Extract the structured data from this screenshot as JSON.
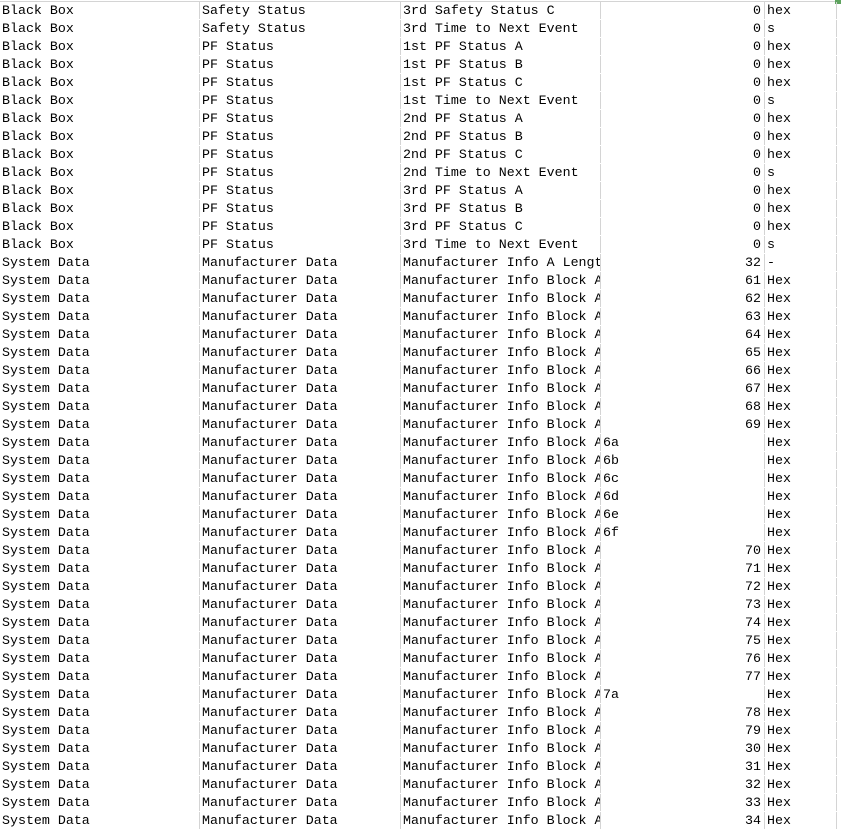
{
  "sheet": {
    "rows": [
      [
        "Black Box",
        "Safety Status",
        "3rd Safety Status C",
        "0",
        "hex"
      ],
      [
        "Black Box",
        "Safety Status",
        "3rd Time to Next Event",
        "0",
        "s"
      ],
      [
        "Black Box",
        "PF Status",
        "1st PF Status A",
        "0",
        "hex"
      ],
      [
        "Black Box",
        "PF Status",
        "1st PF Status B",
        "0",
        "hex"
      ],
      [
        "Black Box",
        "PF Status",
        "1st PF Status C",
        "0",
        "hex"
      ],
      [
        "Black Box",
        "PF Status",
        "1st Time to Next Event",
        "0",
        "s"
      ],
      [
        "Black Box",
        "PF Status",
        "2nd PF Status A",
        "0",
        "hex"
      ],
      [
        "Black Box",
        "PF Status",
        "2nd PF Status B",
        "0",
        "hex"
      ],
      [
        "Black Box",
        "PF Status",
        "2nd PF Status C",
        "0",
        "hex"
      ],
      [
        "Black Box",
        "PF Status",
        "2nd Time to Next Event",
        "0",
        "s"
      ],
      [
        "Black Box",
        "PF Status",
        "3rd PF Status A",
        "0",
        "hex"
      ],
      [
        "Black Box",
        "PF Status",
        "3rd PF Status B",
        "0",
        "hex"
      ],
      [
        "Black Box",
        "PF Status",
        "3rd PF Status C",
        "0",
        "hex"
      ],
      [
        "Black Box",
        "PF Status",
        "3rd Time to Next Event",
        "0",
        "s"
      ],
      [
        "System Data",
        "Manufacturer Data",
        "Manufacturer Info A Length",
        "32",
        "-"
      ],
      [
        "System Data",
        "Manufacturer Data",
        "Manufacturer Info Block A",
        "61",
        "Hex"
      ],
      [
        "System Data",
        "Manufacturer Data",
        "Manufacturer Info Block A",
        "62",
        "Hex"
      ],
      [
        "System Data",
        "Manufacturer Data",
        "Manufacturer Info Block A",
        "63",
        "Hex"
      ],
      [
        "System Data",
        "Manufacturer Data",
        "Manufacturer Info Block A",
        "64",
        "Hex"
      ],
      [
        "System Data",
        "Manufacturer Data",
        "Manufacturer Info Block A",
        "65",
        "Hex"
      ],
      [
        "System Data",
        "Manufacturer Data",
        "Manufacturer Info Block A",
        "66",
        "Hex"
      ],
      [
        "System Data",
        "Manufacturer Data",
        "Manufacturer Info Block A",
        "67",
        "Hex"
      ],
      [
        "System Data",
        "Manufacturer Data",
        "Manufacturer Info Block A",
        "68",
        "Hex"
      ],
      [
        "System Data",
        "Manufacturer Data",
        "Manufacturer Info Block A",
        "69",
        "Hex"
      ],
      [
        "System Data",
        "Manufacturer Data",
        "Manufacturer Info Block A",
        "6a",
        "Hex"
      ],
      [
        "System Data",
        "Manufacturer Data",
        "Manufacturer Info Block A",
        "6b",
        "Hex"
      ],
      [
        "System Data",
        "Manufacturer Data",
        "Manufacturer Info Block A",
        "6c",
        "Hex"
      ],
      [
        "System Data",
        "Manufacturer Data",
        "Manufacturer Info Block A",
        "6d",
        "Hex"
      ],
      [
        "System Data",
        "Manufacturer Data",
        "Manufacturer Info Block A",
        "6e",
        "Hex"
      ],
      [
        "System Data",
        "Manufacturer Data",
        "Manufacturer Info Block A",
        "6f",
        "Hex"
      ],
      [
        "System Data",
        "Manufacturer Data",
        "Manufacturer Info Block A",
        "70",
        "Hex"
      ],
      [
        "System Data",
        "Manufacturer Data",
        "Manufacturer Info Block A",
        "71",
        "Hex"
      ],
      [
        "System Data",
        "Manufacturer Data",
        "Manufacturer Info Block A",
        "72",
        "Hex"
      ],
      [
        "System Data",
        "Manufacturer Data",
        "Manufacturer Info Block A",
        "73",
        "Hex"
      ],
      [
        "System Data",
        "Manufacturer Data",
        "Manufacturer Info Block A",
        "74",
        "Hex"
      ],
      [
        "System Data",
        "Manufacturer Data",
        "Manufacturer Info Block A",
        "75",
        "Hex"
      ],
      [
        "System Data",
        "Manufacturer Data",
        "Manufacturer Info Block A",
        "76",
        "Hex"
      ],
      [
        "System Data",
        "Manufacturer Data",
        "Manufacturer Info Block A",
        "77",
        "Hex"
      ],
      [
        "System Data",
        "Manufacturer Data",
        "Manufacturer Info Block A",
        "7a",
        "Hex"
      ],
      [
        "System Data",
        "Manufacturer Data",
        "Manufacturer Info Block A",
        "78",
        "Hex"
      ],
      [
        "System Data",
        "Manufacturer Data",
        "Manufacturer Info Block A",
        "79",
        "Hex"
      ],
      [
        "System Data",
        "Manufacturer Data",
        "Manufacturer Info Block A",
        "30",
        "Hex"
      ],
      [
        "System Data",
        "Manufacturer Data",
        "Manufacturer Info Block A",
        "31",
        "Hex"
      ],
      [
        "System Data",
        "Manufacturer Data",
        "Manufacturer Info Block A",
        "32",
        "Hex"
      ],
      [
        "System Data",
        "Manufacturer Data",
        "Manufacturer Info Block A",
        "33",
        "Hex"
      ],
      [
        "System Data",
        "Manufacturer Data",
        "Manufacturer Info Block A",
        "34",
        "Hex"
      ]
    ]
  }
}
